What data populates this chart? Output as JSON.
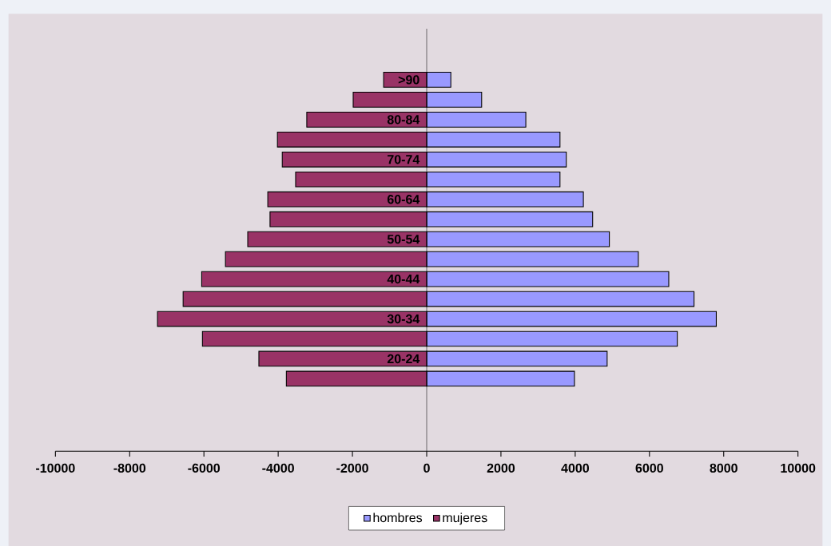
{
  "chart_data": {
    "type": "bar",
    "orientation": "horizontal",
    "categories": [
      ">90",
      null,
      "80-84",
      null,
      "70-74",
      null,
      "60-64",
      null,
      "50-54",
      null,
      "40-44",
      null,
      "30-34",
      null,
      "20-24",
      null
    ],
    "series": [
      {
        "name": "hombres",
        "color": "#9999ff",
        "values": [
          650,
          1480,
          2670,
          3590,
          3760,
          3590,
          4220,
          4470,
          4920,
          5700,
          6520,
          7200,
          7800,
          6750,
          4860,
          3980
        ]
      },
      {
        "name": "mujeres",
        "color": "#993366",
        "values": [
          -1160,
          -1980,
          -3230,
          -4020,
          -3890,
          -3530,
          -4280,
          -4220,
          -4820,
          -5420,
          -6060,
          -6560,
          -7250,
          -6040,
          -4520,
          -3780
        ]
      }
    ],
    "xlim": [
      -10000,
      10000
    ],
    "xticks": [
      -10000,
      -8000,
      -6000,
      -4000,
      -2000,
      0,
      2000,
      4000,
      6000,
      8000,
      10000
    ],
    "legend": "bottom",
    "stacked": true
  }
}
